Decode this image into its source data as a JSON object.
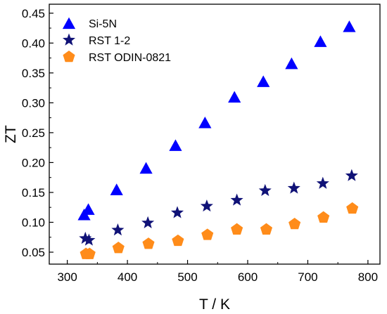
{
  "chart_data": {
    "type": "scatter",
    "xlabel": "T / K",
    "ylabel": "ZT",
    "xlim": [
      270,
      820
    ],
    "ylim": [
      0.03,
      0.465
    ],
    "xticks": [
      300,
      400,
      500,
      600,
      700,
      800
    ],
    "yticks": [
      0.05,
      0.1,
      0.15,
      0.2,
      0.25,
      0.3,
      0.35,
      0.4,
      0.45
    ],
    "xtick_labels": [
      "300",
      "400",
      "500",
      "600",
      "700",
      "800"
    ],
    "ytick_labels": [
      "0.05",
      "0.10",
      "0.15",
      "0.20",
      "0.25",
      "0.30",
      "0.35",
      "0.40",
      "0.45"
    ],
    "grid": false,
    "legend_position": "top-left",
    "series": [
      {
        "name": "Si-5N",
        "marker": "triangle",
        "color": "#0000ff",
        "x": [
          328,
          335,
          382,
          431,
          480,
          529,
          578,
          626,
          673,
          721,
          769
        ],
        "y": [
          0.113,
          0.122,
          0.155,
          0.191,
          0.229,
          0.267,
          0.31,
          0.336,
          0.366,
          0.403,
          0.428
        ]
      },
      {
        "name": "RST 1-2",
        "marker": "star",
        "color": "#101277",
        "x": [
          330,
          336,
          384,
          434,
          483,
          532,
          582,
          629,
          677,
          725,
          773
        ],
        "y": [
          0.073,
          0.07,
          0.087,
          0.099,
          0.116,
          0.127,
          0.137,
          0.153,
          0.157,
          0.165,
          0.178
        ]
      },
      {
        "name": "RST ODIN-0821",
        "marker": "pentagon",
        "color": "#ff8c1a",
        "x": [
          331,
          337,
          385,
          435,
          484,
          533,
          582,
          631,
          678,
          726,
          774
        ],
        "y": [
          0.047,
          0.047,
          0.057,
          0.064,
          0.069,
          0.079,
          0.088,
          0.088,
          0.097,
          0.108,
          0.123
        ]
      }
    ]
  }
}
